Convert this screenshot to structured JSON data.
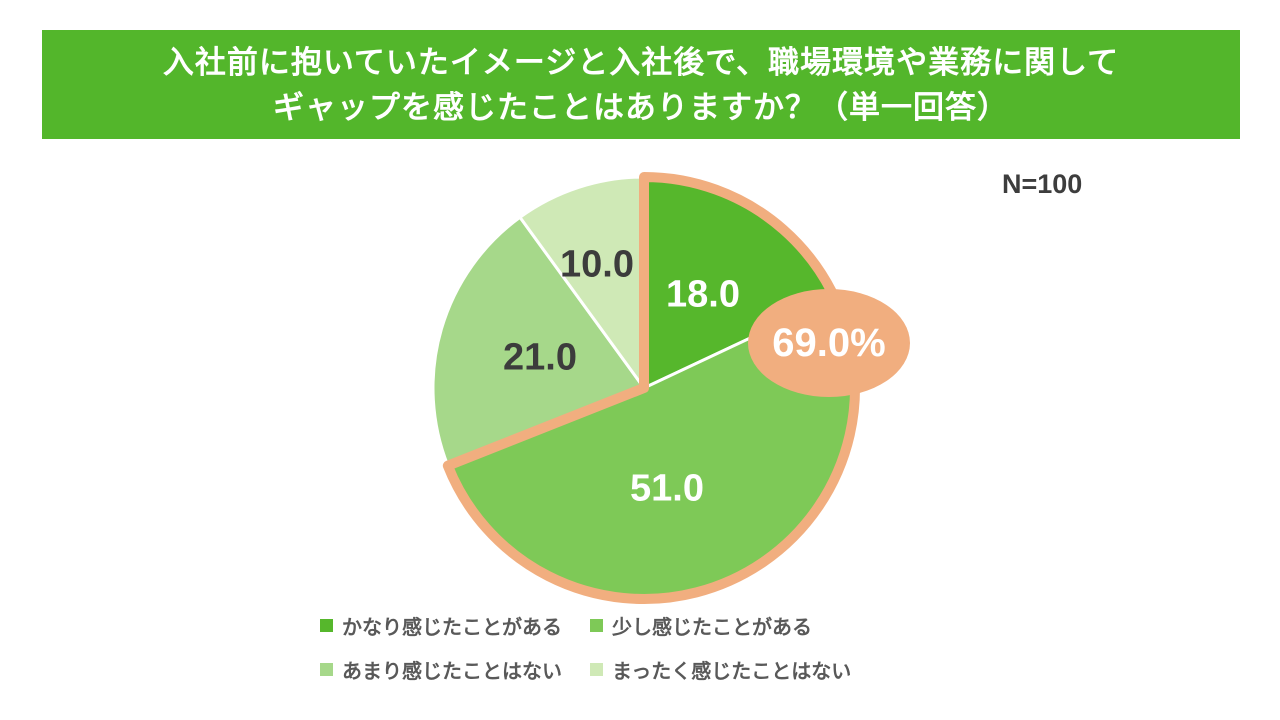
{
  "title": {
    "line1": "入社前に抱いていたイメージと入社後で、職場環境や業務に関して",
    "line2": "ギャップを感じたことはありますか？（単一回答）"
  },
  "sample_size": "N=100",
  "chart_data": {
    "type": "pie",
    "title": "入社前に抱いていたイメージと入社後で、職場環境や業務に関してギャップを感じたことはありますか？（単一回答）",
    "sample_size": "N=100",
    "categories": [
      "かなり感じたことがある",
      "少し感じたことがある",
      "あまり感じたことはない",
      "まったく感じたことはない"
    ],
    "values": [
      18.0,
      51.0,
      21.0,
      10.0
    ],
    "value_labels": [
      "18.0",
      "51.0",
      "21.0",
      "10.0"
    ],
    "colors": [
      "#56b72c",
      "#7ec957",
      "#a6d88a",
      "#cfe9b6"
    ],
    "start_angle": "12-o-clock",
    "direction": "clockwise",
    "unit": "%",
    "legend_position": "bottom",
    "annotation": {
      "label": "69.0%",
      "value": 69.0,
      "represents": "かなり感じたことがある + 少し感じたことがある",
      "color": "#f1ae7f"
    }
  },
  "colors": {
    "banner_background": "#53b62b",
    "title_text": "#ffffff",
    "dark_label": "#3c3c3c",
    "light_label": "#ffffff",
    "legend_text": "#595959",
    "highlight_outline": "#f1ae7f",
    "background": "#ffffff"
  }
}
